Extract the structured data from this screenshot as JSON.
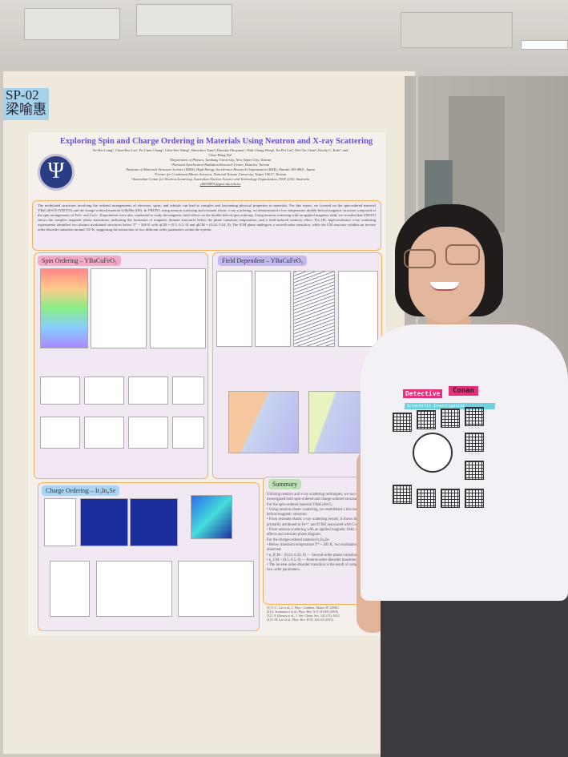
{
  "board_tag": {
    "code": "SP-02",
    "name": "梁喻惠"
  },
  "poster": {
    "title": "Exploring Spin and Charge Ordering in Materials Using Neutron and X-ray Scattering",
    "authors": "Yu-Hui Liang¹, Chun-Hao Lai¹, Po-Chun Chang¹, Chin-Wei Wang², Shinichiro Yano², Daisuke Okuyama³, Shih-Chang Weng², En-Pei Liu⁴, Wei-Tin Chen⁴, Kirrily C. Rule⁵, and Chao-Hung Du¹",
    "affiliations": [
      "¹Department of Physics, Tamkang University, New Taipei City, Taiwan",
      "²National Synchrotron Radiation Research Center, Hsinchu, Taiwan",
      "³Institute of Materials Structure Science (IMSS), High Energy Accelerator Research Organization (KEK), Ibaraki 305-0801, Japan",
      "⁴Center for Condensed Matter Sciences, National Taiwan University, Taipei 10617, Taiwan",
      "⁵Australian Center for Neutron Scattering, Australian Nuclear Science and Technology Organization, NSW 2232, Australia"
    ],
    "email": "yhl050891@gms.tku.edu.tw",
    "logo_symbol": "Ψ",
    "abstract": "The modulated structures involving the ordered arrangements of electrons, spins, and orbitals can lead to complex and fascinating physical properties in materials. For this report, we focused on the spin-ordered material YBaCuFeO5 (YBCFO) and the charge-ordered material Ir3In8Se (IIS). In YBCFO, using neutron scattering and resonant elastic x-ray scattering, we demonstrated a low-temperature double-helical magnetic structure composed of the spin arrangements of Fe3+ and Cu2+. Experiments were also conducted to study the magnetic field effects on the double-helical spin ordering. Using neutron scattering with an applied magnetic field, we revealed that YBCFO shows the complex magnetic phase transitions, indicating the formation of magnetic domain structures below the phase transition temperature, and a field-induced memory effect. For IIS, high-resolution x-ray scattering experiments identified two distinct modulated structures below T* ~ 200 K with qCM = (0.5, 0.5, 0) and qICM = (0.24, 0.24, 0). The ICM phase undergoes a second-order transition, while the CM structure exhibits an inverse order-disorder transition around 150 K, suggesting the interaction of two different order parameters within the system.",
    "sections": {
      "spin": "Spin Ordering – YBaCuFeO₅",
      "field": "Field Dependent – YBaCuFeO₅",
      "charge": "Charge Ordering – Ir₃In₈Se",
      "summary": "Summary"
    },
    "summary_lines": [
      "Utilizing neutron and x-ray scattering techniques, we successfully investigated both spin-ordered and charge-ordered structures.",
      "For the spin-ordered material YBaCuFeO₅:",
      "• Using neutron elastic scattering, we established a low-temperature double-helical magnetic structure.",
      "• From resonant elastic x-ray scattering results, it shows that ICM1 is primarily attributed to Fe³⁺, and ICM2 associated with Cu²⁺.",
      "• From neutron scattering with an applied magnetic field, reveals the memory effects and intricate phase diagram.",
      "For the charge-ordered material Ir₃In₈Se:",
      "• Below transition temperature T* ~ 203 K, two modulated structures are observed.",
      "• q_ICM ~ (0.24, 0.24, 0) — Second-order phase transition",
      "• q_CM ~ (0.5, 0.5, 0) — Inverse order-disorder transition",
      "• The inverse order-disorder transition is the result of competition between two order parameters."
    ],
    "references": [
      "[1] Y.-C. Lai et al., J. Phys.: Condens. Matter 29 145801",
      "[2] A. Scaramucci et al., Phys. Rev. X 8, 011005 (2018)",
      "[3] J. F. Khoury et al., J. Am. Chem. Soc. 142 (15), 6312",
      "[4] S.-H. Lee et al., Phys. Rev. B 92, 201114 (2015)"
    ]
  },
  "shirt": {
    "line1": "Detective",
    "line2": "Conan",
    "line3": "Scientific Investigation"
  },
  "colors": {
    "title": "#6a50c8",
    "spin_header": "#f3a9c9",
    "field_header": "#c3b8f0",
    "charge_header": "#a9d4f2",
    "summary_header": "#bfe0b9",
    "box_border": "#f2b35b",
    "tag": "#a7d3ea",
    "shirt_pink": "#e5307a",
    "shirt_cyan": "#6ed0dc"
  }
}
